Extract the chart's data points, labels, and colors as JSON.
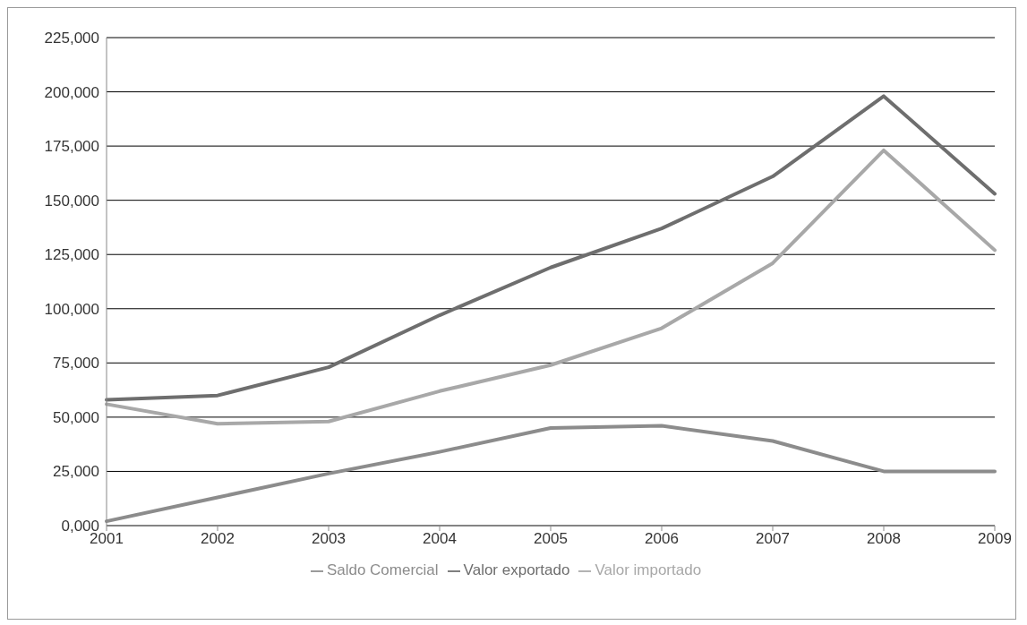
{
  "chart_data": {
    "type": "line",
    "categories": [
      "2001",
      "2002",
      "2003",
      "2004",
      "2005",
      "2006",
      "2007",
      "2008",
      "2009"
    ],
    "series": [
      {
        "name": "Valor exportado",
        "color": "#6e6e6e",
        "values": [
          58000,
          60000,
          73000,
          97000,
          119000,
          137000,
          161000,
          198000,
          153000
        ]
      },
      {
        "name": "Valor importado",
        "color": "#a8a8a8",
        "values": [
          56000,
          47000,
          48000,
          62000,
          74000,
          91000,
          121000,
          173000,
          127000
        ]
      },
      {
        "name": "Saldo Comercial",
        "color": "#8c8c8c",
        "values": [
          2000,
          13000,
          24000,
          34000,
          45000,
          46000,
          39000,
          25000,
          25000
        ]
      }
    ],
    "ylim": [
      0,
      225000
    ],
    "yticks": [
      {
        "value": 0,
        "label": "0,000"
      },
      {
        "value": 25000,
        "label": "25,000"
      },
      {
        "value": 50000,
        "label": "50,000"
      },
      {
        "value": 75000,
        "label": "75,000"
      },
      {
        "value": 100000,
        "label": "100,000"
      },
      {
        "value": 125000,
        "label": "125,000"
      },
      {
        "value": 150000,
        "label": "150,000"
      },
      {
        "value": 175000,
        "label": "175,000"
      },
      {
        "value": 200000,
        "label": "200,000"
      },
      {
        "value": 225000,
        "label": "225,000"
      }
    ],
    "grid": "y",
    "legend": "bottom",
    "marker": "none",
    "line_style": "solid"
  }
}
